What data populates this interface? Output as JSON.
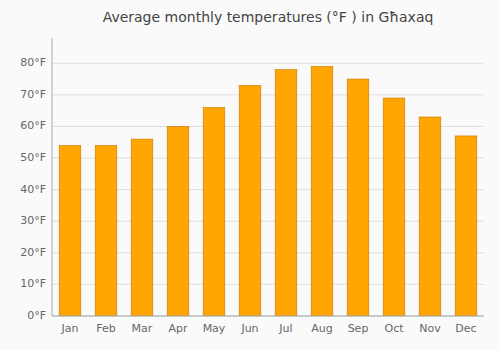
{
  "chart_data": {
    "type": "bar",
    "title": "Average monthly temperatures (°F ) in Għaxaq",
    "categories": [
      "Jan",
      "Feb",
      "Mar",
      "Apr",
      "May",
      "Jun",
      "Jul",
      "Aug",
      "Sep",
      "Oct",
      "Nov",
      "Dec"
    ],
    "values": [
      54,
      54,
      56,
      60,
      66,
      73,
      78,
      79,
      75,
      69,
      63,
      57
    ],
    "color": "#FFA500",
    "ylim": [
      0,
      88
    ],
    "yticks": [
      {
        "value": 0,
        "label": "0°F"
      },
      {
        "value": 10,
        "label": "10°F"
      },
      {
        "value": 20,
        "label": "20°F"
      },
      {
        "value": 30,
        "label": "30°F"
      },
      {
        "value": 40,
        "label": "40°F"
      },
      {
        "value": 50,
        "label": "50°F"
      },
      {
        "value": 60,
        "label": "60°F"
      },
      {
        "value": 70,
        "label": "70°F"
      },
      {
        "value": 80,
        "label": "80°F"
      }
    ],
    "grid": true
  }
}
